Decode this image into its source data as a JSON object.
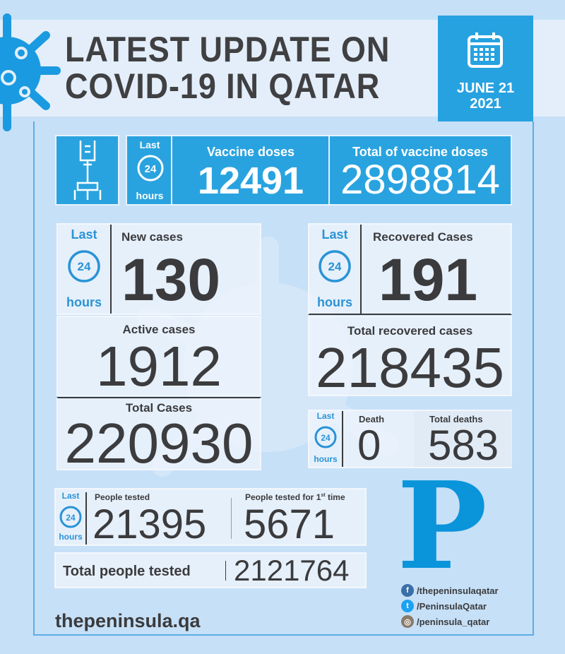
{
  "header": {
    "title_line1": "LATEST UPDATE ON",
    "title_line2": "COVID-19 IN QATAR",
    "date_line1": "JUNE 21",
    "date_line2": "2021"
  },
  "clock": {
    "last": "Last",
    "num": "24",
    "hours": "hours"
  },
  "vaccine": {
    "daily_label": "Vaccine doses",
    "daily_value": "12491",
    "total_label": "Total of vaccine doses",
    "total_value": "2898814"
  },
  "cases": {
    "new_label": "New cases",
    "new_value": "130",
    "active_label": "Active cases",
    "active_value": "1912",
    "total_label": "Total Cases",
    "total_value": "220930"
  },
  "recovered": {
    "new_label": "Recovered Cases",
    "new_value": "191",
    "total_label": "Total recovered cases",
    "total_value": "218435"
  },
  "deaths": {
    "death_label": "Death",
    "death_value": "0",
    "total_label": "Total deaths",
    "total_value": "583"
  },
  "tests": {
    "tested_label": "People tested",
    "tested_value": "21395",
    "first_label": "People tested for 1",
    "first_sup": "st",
    "first_suffix": " time",
    "first_value": "5671",
    "total_label": "Total people tested",
    "total_value": "2121764"
  },
  "footer": {
    "website": "thepeninsula.qa",
    "logo_letter": "P",
    "facebook": "/thepeninsulaqatar",
    "twitter": "/PeninsulaQatar",
    "instagram": "/peninsula_qatar"
  },
  "colors": {
    "accent": "#29a3df",
    "background": "#c6e0f7",
    "text": "#3b3b3d"
  }
}
